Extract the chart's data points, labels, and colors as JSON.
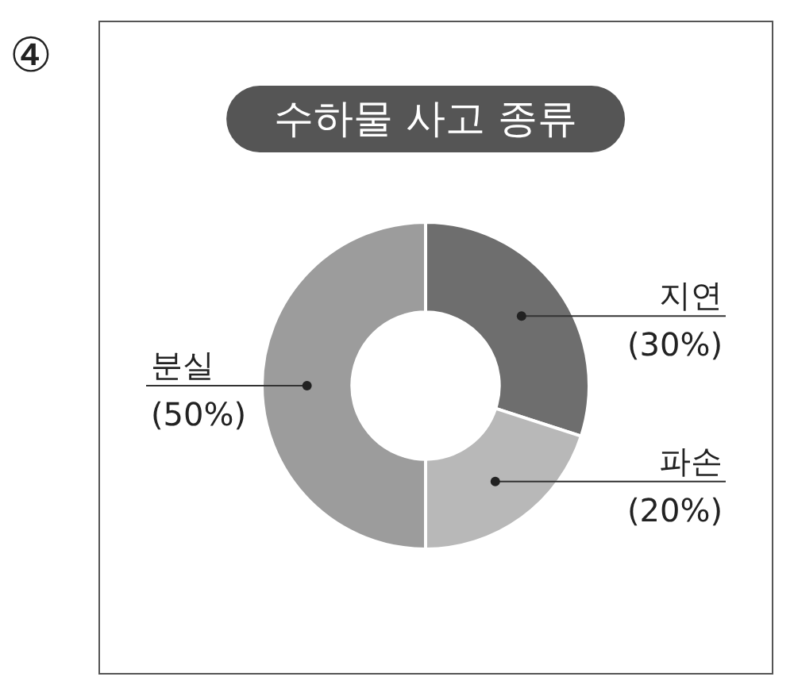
{
  "chart_data": {
    "type": "donut",
    "title": "수하물 사고 종류",
    "categories": [
      "지연",
      "파손",
      "분실"
    ],
    "values": [
      30,
      20,
      50
    ],
    "colors": [
      "#6e6e6e",
      "#b8b8b8",
      "#9c9c9c"
    ],
    "value_labels": [
      "(30%)",
      "(20%)",
      "(50%)"
    ],
    "annotations": [
      "④"
    ]
  }
}
